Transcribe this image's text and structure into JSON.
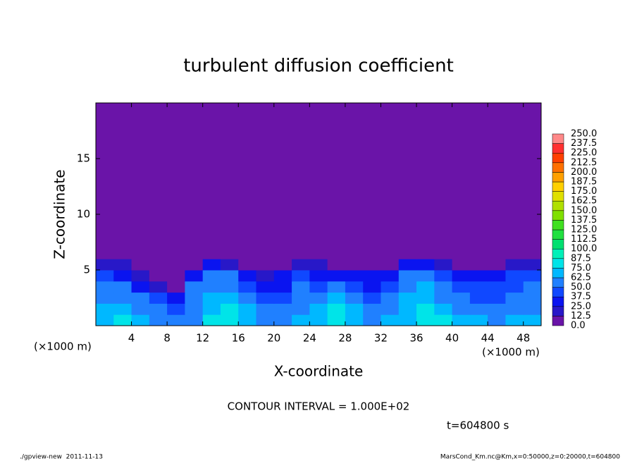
{
  "chart_data": {
    "type": "heatmap",
    "title": "turbulent diffusion coefficient",
    "xlabel": "X-coordinate",
    "ylabel": "Z-coordinate",
    "xlabel_unit": "(×1000 m)",
    "ylabel_unit": "(×1000 m)",
    "xlim": [
      0,
      50
    ],
    "ylim": [
      0,
      20
    ],
    "xticks": [
      4,
      8,
      12,
      16,
      20,
      24,
      28,
      32,
      36,
      40,
      44,
      48
    ],
    "yticks": [
      5,
      10,
      15
    ],
    "x_bins": [
      0,
      2,
      4,
      6,
      8,
      10,
      12,
      14,
      16,
      18,
      20,
      22,
      24,
      26,
      28,
      30,
      32,
      34,
      36,
      38,
      40,
      42,
      44,
      46,
      48,
      50
    ],
    "y_bins": [
      0,
      1,
      2,
      3,
      4,
      5,
      6,
      20
    ],
    "z": [
      [
        70,
        75,
        65,
        60,
        55,
        60,
        75,
        80,
        70,
        60,
        55,
        65,
        70,
        80,
        70,
        60,
        65,
        70,
        80,
        75,
        70,
        65,
        60,
        70,
        65
      ],
      [
        65,
        70,
        60,
        50,
        45,
        60,
        70,
        75,
        65,
        55,
        50,
        60,
        70,
        75,
        65,
        55,
        60,
        70,
        75,
        70,
        60,
        55,
        50,
        60,
        60
      ],
      [
        60,
        60,
        50,
        40,
        30,
        55,
        65,
        65,
        55,
        45,
        45,
        55,
        60,
        65,
        55,
        45,
        55,
        65,
        70,
        60,
        50,
        45,
        45,
        50,
        55
      ],
      [
        55,
        50,
        35,
        20,
        10,
        50,
        60,
        60,
        45,
        35,
        35,
        50,
        45,
        50,
        40,
        35,
        45,
        60,
        65,
        55,
        40,
        40,
        40,
        45,
        50
      ],
      [
        45,
        35,
        20,
        10,
        5,
        30,
        50,
        50,
        35,
        20,
        25,
        40,
        30,
        30,
        30,
        25,
        35,
        50,
        55,
        45,
        30,
        30,
        35,
        40,
        40
      ],
      [
        20,
        15,
        5,
        0,
        0,
        10,
        25,
        20,
        10,
        5,
        10,
        15,
        15,
        10,
        5,
        5,
        10,
        25,
        30,
        20,
        10,
        5,
        10,
        15,
        15
      ],
      [
        0,
        0,
        0,
        0,
        0,
        0,
        0,
        0,
        0,
        0,
        0,
        0,
        0,
        0,
        0,
        0,
        0,
        0,
        0,
        0,
        0,
        0,
        0,
        0,
        0
      ]
    ],
    "levels": [
      {
        "value": 0,
        "label": "0.0"
      },
      {
        "value": 12.5,
        "label": "12.5"
      },
      {
        "value": 25,
        "label": "25.0"
      },
      {
        "value": 37.5,
        "label": "37.5"
      },
      {
        "value": 50,
        "label": "50.0"
      },
      {
        "value": 62.5,
        "label": "62.5"
      },
      {
        "value": 75,
        "label": "75.0"
      },
      {
        "value": 87.5,
        "label": "87.5"
      },
      {
        "value": 100,
        "label": "100.0"
      },
      {
        "value": 112.5,
        "label": "112.5"
      },
      {
        "value": 125,
        "label": "125.0"
      },
      {
        "value": 137.5,
        "label": "137.5"
      },
      {
        "value": 150,
        "label": "150.0"
      },
      {
        "value": 162.5,
        "label": "162.5"
      },
      {
        "value": 175,
        "label": "175.0"
      },
      {
        "value": 187.5,
        "label": "187.5"
      },
      {
        "value": 200,
        "label": "200.0"
      },
      {
        "value": 212.5,
        "label": "212.5"
      },
      {
        "value": 225,
        "label": "225.0"
      },
      {
        "value": 237.5,
        "label": "237.5"
      },
      {
        "value": 250,
        "label": "250.0"
      }
    ],
    "colors": [
      "#6a14a8",
      "#2818c8",
      "#0a14f0",
      "#1048ff",
      "#2080ff",
      "#00b8ff",
      "#00e4e8",
      "#00f0b8",
      "#00e070",
      "#20e040",
      "#40e020",
      "#80e000",
      "#b0e000",
      "#e0e000",
      "#ffd000",
      "#ffa000",
      "#ff7000",
      "#ff4000",
      "#ff3030",
      "#ff8888"
    ],
    "contour_interval": "CONTOUR INTERVAL = 1.000E+02",
    "time": "t=604800 s",
    "footer_left": "./gpview-new  2011-11-13",
    "footer_right": "MarsCond_Km.nc@Km,x=0:50000,z=0:20000,t=604800"
  }
}
